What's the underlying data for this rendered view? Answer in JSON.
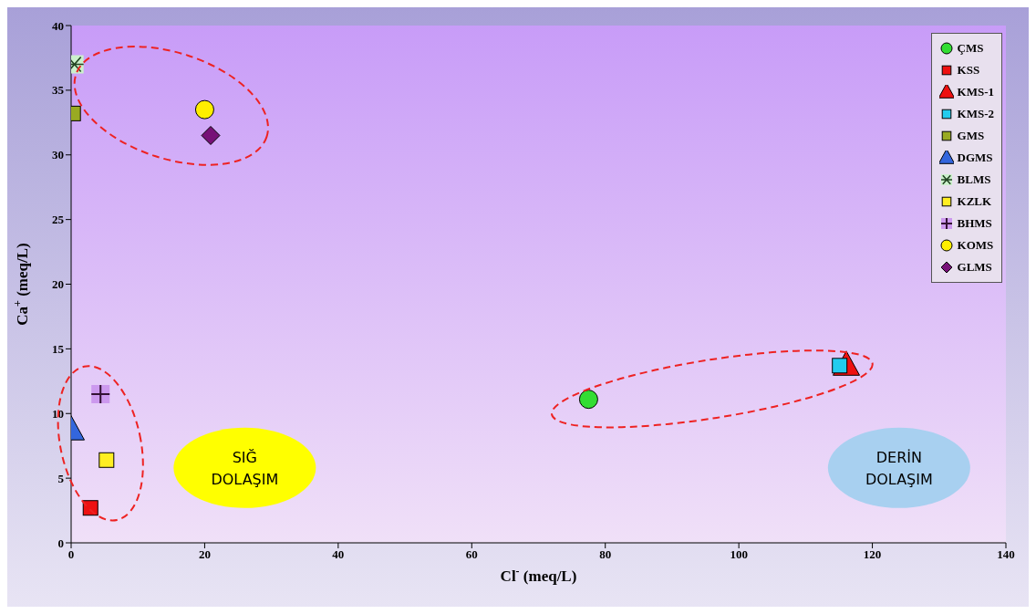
{
  "chart_data": {
    "type": "scatter",
    "xlabel": "Cl$^{-}$ (meq/L)",
    "ylabel": "Ca$^{+}$ (meq/L)",
    "xlim": [
      0,
      140
    ],
    "xticks": [
      0,
      20,
      40,
      60,
      80,
      100,
      120,
      140
    ],
    "ylim": [
      0,
      40
    ],
    "yticks": [
      0,
      5,
      10,
      15,
      20,
      25,
      30,
      35,
      40
    ],
    "grid": false,
    "legend": "top right",
    "annotations": [
      "SIĞ DOLAŞIM",
      "DERİN DOLAŞIM"
    ],
    "series": [
      {
        "name": "ÇMS",
        "color": "#33dd33",
        "marker": "circle",
        "x": [
          77.5
        ],
        "values": [
          11.1
        ]
      },
      {
        "name": "KSS",
        "color": "#ee1111",
        "marker": "square",
        "x": [
          2.9
        ],
        "values": [
          2.7
        ]
      },
      {
        "name": "KMS-1",
        "color": "#ee1111",
        "marker": "triangle",
        "x": [
          116.1
        ],
        "values": [
          13.7
        ]
      },
      {
        "name": "KMS-2",
        "color": "#22ccee",
        "marker": "square",
        "x": [
          115.1
        ],
        "values": [
          13.7
        ]
      },
      {
        "name": "GMS",
        "color": "#99aa22",
        "marker": "square",
        "x": [
          0.3
        ],
        "values": [
          33.2
        ]
      },
      {
        "name": "DGMS",
        "color": "#3366dd",
        "marker": "triangle",
        "x": [
          0
        ],
        "values": [
          8.7
        ]
      },
      {
        "name": "BLMS",
        "color": "#224422",
        "x": [
          0.5
        ],
        "values": [
          37
        ]
      },
      {
        "name": "KZLK",
        "color": "#ffee22",
        "marker": "square",
        "x": [
          5.3
        ],
        "values": [
          6.4
        ]
      },
      {
        "name": "BHMS",
        "color": "#331133",
        "marker": "cross",
        "x": [
          4.4
        ],
        "values": [
          11.5
        ]
      },
      {
        "name": "KOMS",
        "color": "#ffee00",
        "marker": "circle",
        "x": [
          20
        ],
        "values": [
          33.5
        ]
      },
      {
        "name": "GLMS",
        "color": "#771177",
        "marker": "diamond",
        "x": [
          20.9
        ],
        "values": [
          31.5
        ]
      }
    ]
  }
}
